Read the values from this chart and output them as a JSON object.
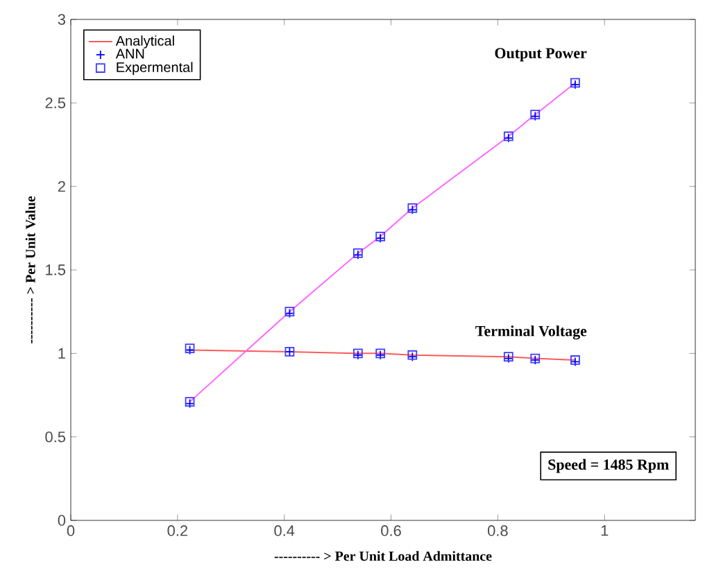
{
  "chart_data": {
    "type": "line",
    "xlabel": "---------- > Per Unit Load Admittance",
    "ylabel": "---------- > Per Unit Value",
    "xlim": [
      0,
      1.17
    ],
    "ylim": [
      0,
      3
    ],
    "xticks": [
      0,
      0.2,
      0.4,
      0.6,
      0.8,
      1
    ],
    "yticks": [
      0,
      0.5,
      1,
      1.5,
      2,
      2.5,
      3
    ],
    "legend": "top left",
    "series": [
      {
        "name": "Analytical",
        "color": "#ff5a5a",
        "x": [
          0.223,
          0.41,
          0.538,
          0.58,
          0.64,
          0.82,
          0.87,
          0.945
        ],
        "values": [
          1.02,
          1.01,
          1.0,
          1.0,
          0.99,
          0.98,
          0.97,
          0.96
        ]
      },
      {
        "color": "#ff66ff",
        "x": [
          0.223,
          0.41,
          0.538,
          0.58,
          0.64,
          0.82,
          0.87,
          0.945
        ],
        "values": [
          0.71,
          1.25,
          1.6,
          1.7,
          1.87,
          2.3,
          2.43,
          2.62
        ]
      },
      {
        "name": "ANN",
        "type": "scatter",
        "marker": "cross",
        "color": "#0000ff",
        "x": [
          0.223,
          0.41,
          0.538,
          0.58,
          0.64,
          0.82,
          0.87,
          0.945,
          0.223,
          0.41,
          0.538,
          0.58,
          0.64,
          0.82,
          0.87,
          0.945
        ],
        "values": [
          1.02,
          1.01,
          0.99,
          0.99,
          0.98,
          0.97,
          0.96,
          0.95,
          0.7,
          1.24,
          1.59,
          1.69,
          1.86,
          2.29,
          2.42,
          2.61
        ]
      },
      {
        "name": "Expermental",
        "type": "scatter",
        "marker": "square",
        "color": "#3c3cff",
        "x": [
          0.223,
          0.41,
          0.538,
          0.58,
          0.64,
          0.82,
          0.87,
          0.945,
          0.223,
          0.41,
          0.538,
          0.58,
          0.64,
          0.82,
          0.87,
          0.945
        ],
        "values": [
          1.03,
          1.01,
          1.0,
          1.0,
          0.99,
          0.98,
          0.97,
          0.96,
          0.71,
          1.25,
          1.6,
          1.7,
          1.87,
          2.3,
          2.43,
          2.62
        ]
      }
    ],
    "annotations": [
      {
        "text": "Output Power",
        "x": 0.945,
        "y": 2.62
      },
      {
        "text": "Terminal Voltage",
        "x": 0.945,
        "y": 0.955
      },
      "Speed     = 1485 Rpm"
    ]
  }
}
